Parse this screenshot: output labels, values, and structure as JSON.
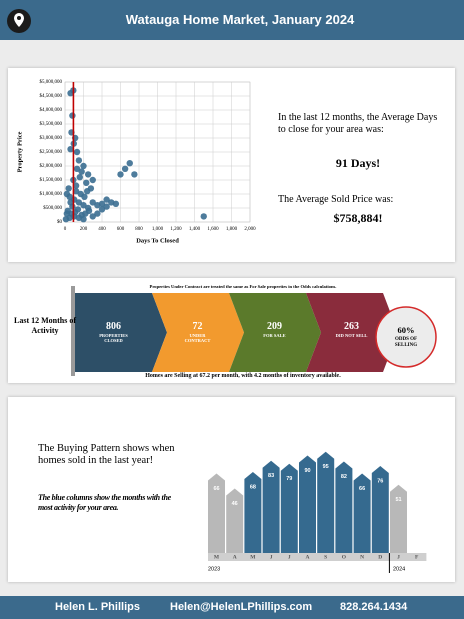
{
  "header": {
    "title": "Watauga Home Market, January 2024"
  },
  "chart_data": [
    {
      "type": "scatter",
      "x_label": "Days To Closed",
      "y_label": "Property Price",
      "color": "#3b6e91",
      "x": [
        90,
        60,
        80,
        70,
        110,
        95,
        130,
        60,
        150,
        200,
        180,
        250,
        300,
        230,
        160,
        120,
        40,
        20,
        50,
        100,
        150,
        200,
        250,
        300,
        350,
        400,
        450,
        500,
        550,
        600,
        650,
        700,
        750,
        1500,
        30,
        70,
        110,
        140,
        180,
        220,
        260,
        80,
        120,
        170,
        210,
        240,
        280,
        60,
        90,
        130,
        20,
        10,
        50,
        100,
        150,
        200,
        300,
        350,
        400,
        450
      ],
      "y": [
        4700000,
        4600000,
        3800000,
        3200000,
        3000000,
        2800000,
        2500000,
        2600000,
        2200000,
        2000000,
        1800000,
        1700000,
        1500000,
        1400000,
        1600000,
        1300000,
        1200000,
        1000000,
        900000,
        800000,
        700000,
        600000,
        500000,
        700000,
        600000,
        650000,
        550000,
        700000,
        650000,
        1700000,
        1900000,
        2100000,
        1700000,
        200000,
        400000,
        300000,
        350000,
        450000,
        250000,
        300000,
        400000,
        550000,
        1100000,
        1000000,
        900000,
        1100000,
        1200000,
        700000,
        1500000,
        1900000,
        300000,
        100000,
        150000,
        200000,
        150000,
        100000,
        200000,
        300000,
        450000,
        800000
      ],
      "xlim": [
        0,
        2000
      ],
      "xticks": [
        0,
        200,
        400,
        600,
        800,
        {
          "value": 1000,
          "label": "1,000"
        },
        {
          "value": 1200,
          "label": "1,200"
        },
        {
          "value": 1400,
          "label": "1,400"
        },
        {
          "value": 1600,
          "label": "1,600"
        },
        {
          "value": 1800,
          "label": "1,800"
        },
        {
          "value": 2000,
          "label": "2,000"
        }
      ],
      "ylim": [
        0,
        5000000
      ],
      "yticks": [
        {
          "value": 0,
          "label": "$0"
        },
        {
          "value": 500000,
          "label": "$500,000"
        },
        {
          "value": 1000000,
          "label": "$1,000,000"
        },
        {
          "value": 1500000,
          "label": "$1,500,000"
        },
        {
          "value": 2000000,
          "label": "$2,000,000"
        },
        {
          "value": 2500000,
          "label": "$2,500,000"
        },
        {
          "value": 3000000,
          "label": "$3,000,000"
        },
        {
          "value": 3500000,
          "label": "$3,500,000"
        },
        {
          "value": 4000000,
          "label": "$4,000,000"
        },
        {
          "value": 4500000,
          "label": "$4,500,000"
        },
        {
          "value": 5000000,
          "label": "$5,000,000"
        }
      ],
      "reference_x": 91,
      "reference_color": "#c00000",
      "grid": true
    },
    {
      "type": "column",
      "categories": [
        "M",
        "A",
        "M",
        "J",
        "J",
        "A",
        "S",
        "O",
        "N",
        "D",
        "J",
        "F"
      ],
      "values": [
        66,
        46,
        68,
        83,
        79,
        90,
        95,
        82,
        66,
        76,
        51,
        null
      ],
      "colors": [
        "#b8b8b8",
        "#b8b8b8",
        "#356a8f",
        "#356a8f",
        "#356a8f",
        "#356a8f",
        "#356a8f",
        "#356a8f",
        "#356a8f",
        "#356a8f",
        "#b8b8b8",
        "#b8b8b8"
      ],
      "years": [
        "2023",
        null,
        null,
        null,
        null,
        null,
        null,
        null,
        null,
        null,
        "2024",
        null
      ],
      "ylim": [
        -40,
        100
      ]
    }
  ],
  "stats": {
    "days_text": "In the last 12 months, the Average Days to close for your area was:",
    "days": "91 Days!",
    "price_text": "The Average Sold Price was:",
    "price": "$758,884!"
  },
  "activity": {
    "title": "Last 12 Months of Activity",
    "note": "Properties Under Contract are treated the same as For Sale properties in the Odds calculations.",
    "items": [
      {
        "value": 806,
        "label": "PROPERTIES CLOSED",
        "color": "#2d4f67"
      },
      {
        "value": 72,
        "label": "UNDER CONTRACT",
        "color": "#f29a2e"
      },
      {
        "value": 209,
        "label": "FOR SALE",
        "color": "#5b7a2b"
      },
      {
        "value": 263,
        "label": "DID NOT SELL",
        "color": "#8a2c3c"
      }
    ],
    "odds": "60%",
    "odds_label": "ODDS OF SELLING",
    "summary": "Homes are Selling at 67.2 per month, with 4.2 months of inventory available."
  },
  "pattern": {
    "heading": "The Buying Pattern shows when homes sold in the last year!",
    "note": "The blue columns show the months with the most activity for your area."
  },
  "footer": {
    "name": "Helen L. Phillips",
    "email": "Helen@HelenLPhillips.com",
    "phone": "828.264.1434"
  }
}
